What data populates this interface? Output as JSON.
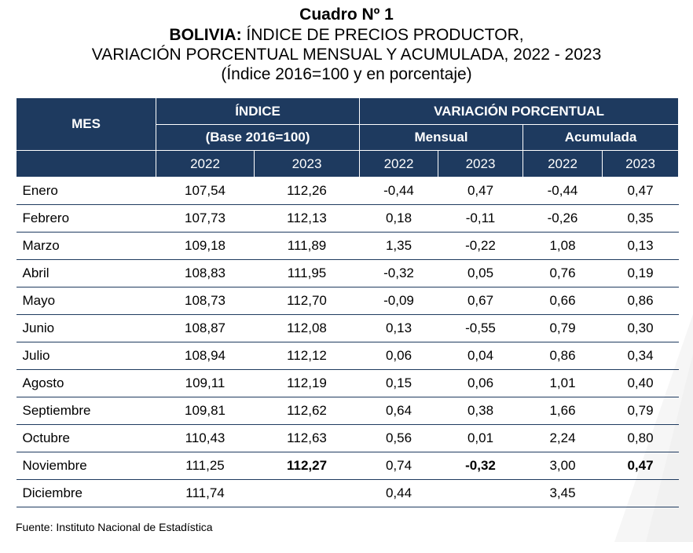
{
  "title": {
    "line1": "Cuadro Nº 1",
    "line2_bold": "BOLIVIA:",
    "line2_rest": " ÍNDICE DE PRECIOS PRODUCTOR,",
    "line3": "VARIACIÓN PORCENTUAL MENSUAL Y ACUMULADA, 2022 - 2023",
    "line4": "(Índice 2016=100 y en porcentaje)"
  },
  "header": {
    "mes": "MES",
    "indice": "ÍNDICE",
    "base": "(Base 2016=100)",
    "variacion": "VARIACIÓN PORCENTUAL",
    "mensual": "Mensual",
    "acumulada": "Acumulada",
    "years": [
      "2022",
      "2023",
      "2022",
      "2023",
      "2022",
      "2023"
    ]
  },
  "rows": [
    {
      "mes": "Enero",
      "i2022": "107,54",
      "i2023": "112,26",
      "m2022": "-0,44",
      "m2023": "0,47",
      "a2022": "-0,44",
      "a2023": "0,47"
    },
    {
      "mes": "Febrero",
      "i2022": "107,73",
      "i2023": "112,13",
      "m2022": "0,18",
      "m2023": "-0,11",
      "a2022": "-0,26",
      "a2023": "0,35"
    },
    {
      "mes": "Marzo",
      "i2022": "109,18",
      "i2023": "111,89",
      "m2022": "1,35",
      "m2023": "-0,22",
      "a2022": "1,08",
      "a2023": "0,13"
    },
    {
      "mes": "Abril",
      "i2022": "108,83",
      "i2023": "111,95",
      "m2022": "-0,32",
      "m2023": "0,05",
      "a2022": "0,76",
      "a2023": "0,19"
    },
    {
      "mes": "Mayo",
      "i2022": "108,73",
      "i2023": "112,70",
      "m2022": "-0,09",
      "m2023": "0,67",
      "a2022": "0,66",
      "a2023": "0,86"
    },
    {
      "mes": "Junio",
      "i2022": "108,87",
      "i2023": "112,08",
      "m2022": "0,13",
      "m2023": "-0,55",
      "a2022": "0,79",
      "a2023": "0,30"
    },
    {
      "mes": "Julio",
      "i2022": "108,94",
      "i2023": "112,12",
      "m2022": "0,06",
      "m2023": "0,04",
      "a2022": "0,86",
      "a2023": "0,34"
    },
    {
      "mes": "Agosto",
      "i2022": "109,11",
      "i2023": "112,19",
      "m2022": "0,15",
      "m2023": "0,06",
      "a2022": "1,01",
      "a2023": "0,40"
    },
    {
      "mes": "Septiembre",
      "i2022": "109,81",
      "i2023": "112,62",
      "m2022": "0,64",
      "m2023": "0,38",
      "a2022": "1,66",
      "a2023": "0,79"
    },
    {
      "mes": "Octubre",
      "i2022": "110,43",
      "i2023": "112,63",
      "m2022": "0,56",
      "m2023": "0,01",
      "a2022": "2,24",
      "a2023": "0,80"
    },
    {
      "mes": "Noviembre",
      "i2022": "111,25",
      "i2023": "112,27",
      "m2022": "0,74",
      "m2023": "-0,32",
      "a2022": "3,00",
      "a2023": "0,47"
    },
    {
      "mes": "Diciembre",
      "i2022": "111,74",
      "i2023": "",
      "m2022": "0,44",
      "m2023": "",
      "a2022": "3,45",
      "a2023": ""
    }
  ],
  "source": "Fuente: Instituto Nacional de Estadística",
  "colors": {
    "header_bg": "#1e3a5f",
    "header_text": "#ffffff",
    "row_rule": "#1e3a5f"
  }
}
